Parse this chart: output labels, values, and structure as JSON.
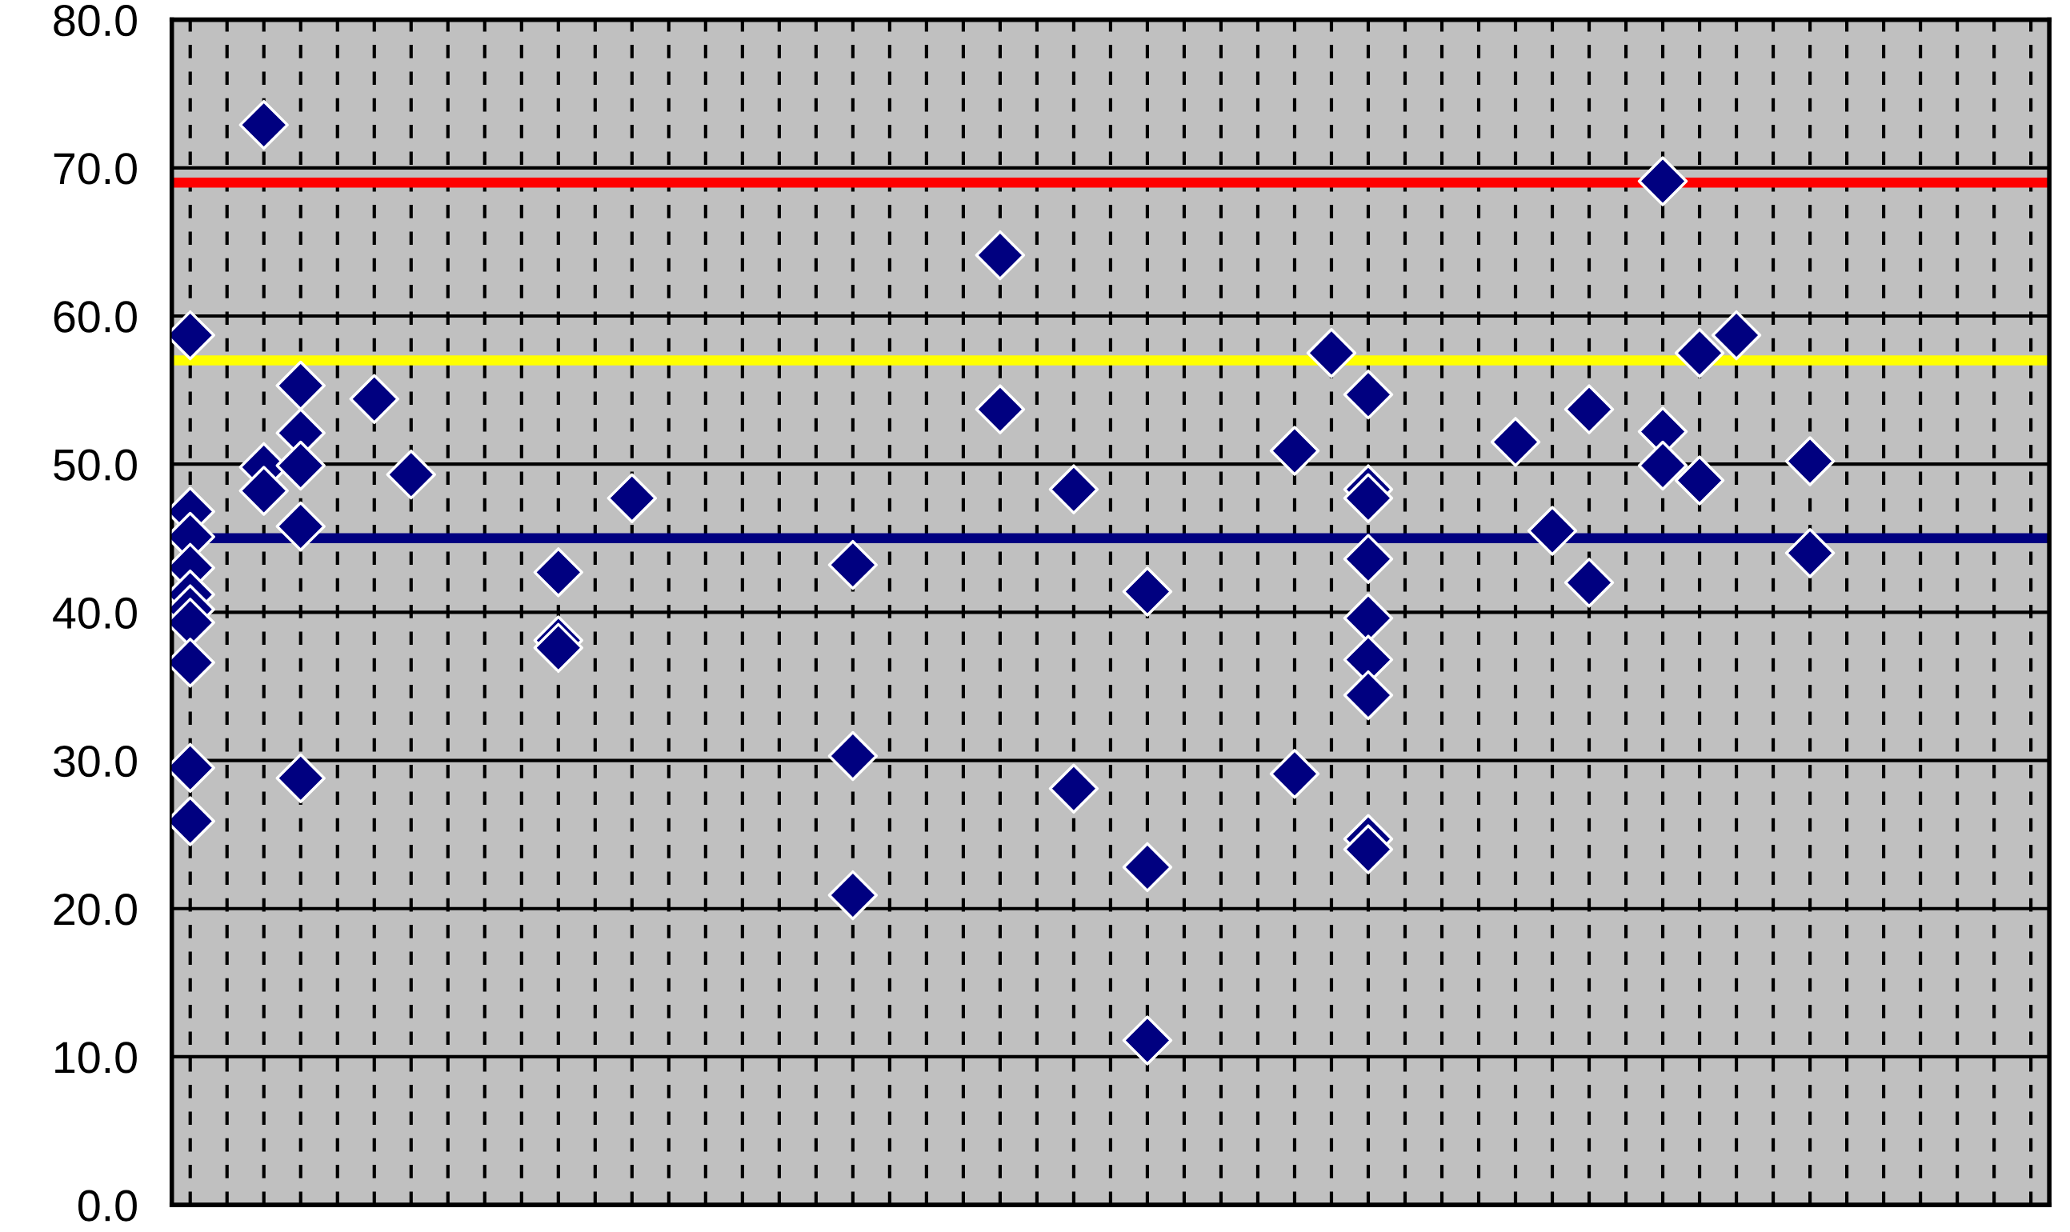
{
  "chart_data": {
    "type": "scatter",
    "categories": [
      null,
      null,
      null,
      null,
      null,
      null,
      null,
      null,
      null,
      null,
      null,
      null,
      null,
      null,
      null,
      null,
      null,
      null,
      null,
      null,
      null,
      null,
      null,
      null,
      null,
      null,
      null,
      null,
      null,
      null,
      null,
      null,
      null,
      null,
      null,
      null,
      null,
      null,
      null,
      null,
      null,
      null,
      null,
      null,
      null,
      null,
      null,
      null,
      null,
      null,
      null
    ],
    "marker": "diamond",
    "series": [
      {
        "color": "#000080",
        "values": [
          58.7,
          null,
          72.9,
          55.3,
          null,
          54.4,
          49.3,
          null,
          null,
          null,
          42.7,
          null,
          47.7,
          null,
          null,
          null,
          null,
          null,
          43.2,
          null,
          null,
          null,
          64.1,
          null,
          48.3,
          null,
          41.4,
          null,
          null,
          null,
          50.9,
          57.5,
          54.7,
          null,
          null,
          null,
          51.5,
          45.5,
          53.7,
          null,
          69.1,
          57.5,
          58.7,
          null,
          50.2,
          null,
          null,
          null,
          null,
          null,
          null
        ]
      },
      {
        "color": "#000080",
        "values": [
          46.8,
          null,
          49.8,
          52.1,
          null,
          null,
          null,
          null,
          null,
          null,
          38.1,
          null,
          null,
          null,
          null,
          null,
          null,
          null,
          30.3,
          null,
          null,
          null,
          53.7,
          null,
          28.1,
          null,
          22.8,
          null,
          null,
          null,
          29.1,
          null,
          48.3,
          null,
          null,
          null,
          null,
          null,
          42.0,
          null,
          52.2,
          48.9,
          null,
          null,
          44.0,
          null,
          null,
          null,
          null,
          null,
          null
        ]
      },
      {
        "color": "#000080",
        "values": [
          45.1,
          null,
          48.2,
          49.9,
          null,
          null,
          null,
          null,
          null,
          null,
          37.6,
          null,
          null,
          null,
          null,
          null,
          null,
          null,
          20.9,
          null,
          null,
          null,
          null,
          null,
          null,
          null,
          11.1,
          null,
          null,
          null,
          null,
          null,
          47.7,
          null,
          null,
          null,
          null,
          null,
          null,
          null,
          49.9,
          null,
          null,
          null,
          null,
          null,
          null,
          null,
          null,
          null,
          null
        ]
      },
      {
        "color": "#000080",
        "values": [
          43.0,
          null,
          null,
          45.8,
          null,
          null,
          null,
          null,
          null,
          null,
          null,
          null,
          null,
          null,
          null,
          null,
          null,
          null,
          null,
          null,
          null,
          null,
          null,
          null,
          null,
          null,
          null,
          null,
          null,
          null,
          null,
          null,
          43.6,
          null,
          null,
          null,
          null,
          null,
          null,
          null,
          null,
          null,
          null,
          null,
          null,
          null,
          null,
          null,
          null,
          null,
          null
        ]
      },
      {
        "color": "#000080",
        "values": [
          41.2,
          null,
          null,
          28.8,
          null,
          null,
          null,
          null,
          null,
          null,
          null,
          null,
          null,
          null,
          null,
          null,
          null,
          null,
          null,
          null,
          null,
          null,
          null,
          null,
          null,
          null,
          null,
          null,
          null,
          null,
          null,
          null,
          39.6,
          null,
          null,
          null,
          null,
          null,
          null,
          null,
          null,
          null,
          null,
          null,
          null,
          null,
          null,
          null,
          null,
          null,
          null
        ]
      },
      {
        "color": "#000080",
        "values": [
          40.2,
          null,
          null,
          null,
          null,
          null,
          null,
          null,
          null,
          null,
          null,
          null,
          null,
          null,
          null,
          null,
          null,
          null,
          null,
          null,
          null,
          null,
          null,
          null,
          null,
          null,
          null,
          null,
          null,
          null,
          null,
          null,
          36.8,
          null,
          null,
          null,
          null,
          null,
          null,
          null,
          null,
          null,
          null,
          null,
          null,
          null,
          null,
          null,
          null,
          null,
          null
        ]
      },
      {
        "color": "#000080",
        "values": [
          39.3,
          null,
          null,
          null,
          null,
          null,
          null,
          null,
          null,
          null,
          null,
          null,
          null,
          null,
          null,
          null,
          null,
          null,
          null,
          null,
          null,
          null,
          null,
          null,
          null,
          null,
          null,
          null,
          null,
          null,
          null,
          null,
          34.4,
          null,
          null,
          null,
          null,
          null,
          null,
          null,
          null,
          null,
          null,
          null,
          null,
          null,
          null,
          null,
          null,
          null,
          null
        ]
      },
      {
        "color": "#000080",
        "values": [
          36.6,
          null,
          null,
          null,
          null,
          null,
          null,
          null,
          null,
          null,
          null,
          null,
          null,
          null,
          null,
          null,
          null,
          null,
          null,
          null,
          null,
          null,
          null,
          null,
          null,
          null,
          null,
          null,
          null,
          null,
          null,
          null,
          24.7,
          null,
          null,
          null,
          null,
          null,
          null,
          null,
          null,
          null,
          null,
          null,
          null,
          null,
          null,
          null,
          null,
          null,
          null
        ]
      },
      {
        "color": "#000080",
        "values": [
          29.5,
          null,
          null,
          null,
          null,
          null,
          null,
          null,
          null,
          null,
          null,
          null,
          null,
          null,
          null,
          null,
          null,
          null,
          null,
          null,
          null,
          null,
          null,
          null,
          null,
          null,
          null,
          null,
          null,
          null,
          null,
          null,
          24.0,
          null,
          null,
          null,
          null,
          null,
          null,
          null,
          null,
          null,
          null,
          null,
          null,
          null,
          null,
          null,
          null,
          null,
          null
        ]
      },
      {
        "color": "#000080",
        "values": [
          25.9,
          null,
          null,
          null,
          null,
          null,
          null,
          null,
          null,
          null,
          null,
          null,
          null,
          null,
          null,
          null,
          null,
          null,
          null,
          null,
          null,
          null,
          null,
          null,
          null,
          null,
          null,
          null,
          null,
          null,
          null,
          null,
          null,
          null,
          null,
          null,
          null,
          null,
          null,
          null,
          null,
          null,
          null,
          null,
          null,
          null,
          null,
          null,
          null,
          null,
          null
        ]
      }
    ],
    "ref_lines": [
      {
        "axis": "y",
        "value": 69,
        "color": "#ff0000"
      },
      {
        "axis": "y",
        "value": 57,
        "color": "#ffff00"
      },
      {
        "axis": "y",
        "value": 45,
        "color": "#000080"
      }
    ],
    "ylim": [
      0,
      80
    ],
    "yticks": [
      {
        "value": 0,
        "label": "0.0"
      },
      {
        "value": 10,
        "label": "10.0"
      },
      {
        "value": 20,
        "label": "20.0"
      },
      {
        "value": 30,
        "label": "30.0"
      },
      {
        "value": 40,
        "label": "40.0"
      },
      {
        "value": 50,
        "label": "50.0"
      },
      {
        "value": 60,
        "label": "60.0"
      },
      {
        "value": 70,
        "label": "70.0"
      },
      {
        "value": 80,
        "label": "80.0"
      }
    ],
    "grid": true
  }
}
